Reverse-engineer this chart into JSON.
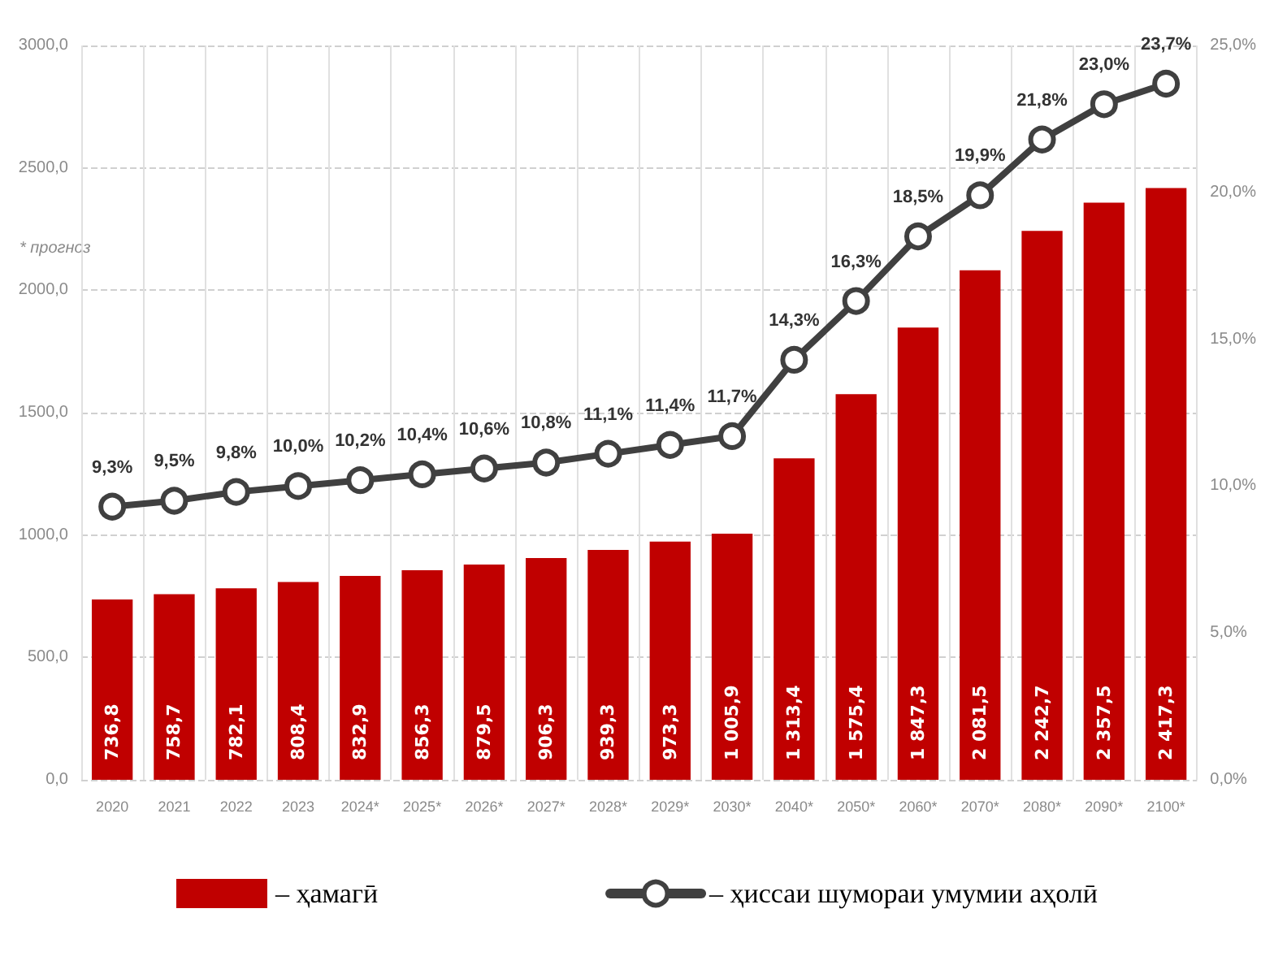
{
  "chart_data": {
    "type": "bar",
    "categories": [
      "2020",
      "2021",
      "2022",
      "2023",
      "2024*",
      "2025*",
      "2026*",
      "2027*",
      "2028*",
      "2029*",
      "2030*",
      "2040*",
      "2050*",
      "2060*",
      "2070*",
      "2080*",
      "2090*",
      "2100*"
    ],
    "series": [
      {
        "name": "– ҳамагӣ",
        "color": "#c00000",
        "values": [
          736.8,
          758.7,
          782.1,
          808.4,
          832.9,
          856.3,
          879.5,
          906.3,
          939.3,
          973.3,
          1005.9,
          1313.4,
          1575.4,
          1847.3,
          2081.5,
          2242.7,
          2357.5,
          2417.3
        ],
        "value_labels": [
          "736,8",
          "758,7",
          "782,1",
          "808,4",
          "832,9",
          "856,3",
          "879,5",
          "906,3",
          "939,3",
          "973,3",
          "1 005,9",
          "1 313,4",
          "1 575,4",
          "1 847,3",
          "2 081,5",
          "2 242,7",
          "2 357,5",
          "2 417,3"
        ]
      },
      {
        "name": "– ҳиссаи шумораи умумии аҳолӣ",
        "type": "line",
        "axis": "y2",
        "color": "#404040",
        "values": [
          9.3,
          9.5,
          9.8,
          10.0,
          10.2,
          10.4,
          10.6,
          10.8,
          11.1,
          11.4,
          11.7,
          14.3,
          16.3,
          18.5,
          19.9,
          21.8,
          23.0,
          23.7
        ],
        "value_labels": [
          "9,3%",
          "9,5%",
          "9,8%",
          "10,0%",
          "10,2%",
          "10,4%",
          "10,6%",
          "10,8%",
          "11,1%",
          "11,4%",
          "11,7%",
          "14,3%",
          "16,3%",
          "18,5%",
          "19,9%",
          "21,8%",
          "23,0%",
          "23,7%"
        ]
      }
    ],
    "ylim": [
      0,
      3000
    ],
    "yticks": [
      {
        "value": 0,
        "label": "0,0"
      },
      {
        "value": 500,
        "label": "500,0"
      },
      {
        "value": 1000,
        "label": "1000,0"
      },
      {
        "value": 1500,
        "label": "1500,0"
      },
      {
        "value": 2000,
        "label": "2000,0"
      },
      {
        "value": 2500,
        "label": "2500,0"
      },
      {
        "value": 3000,
        "label": "3000,0"
      }
    ],
    "y2lim": [
      0,
      25
    ],
    "y2ticks": [
      {
        "value": 0,
        "label": "0,0%"
      },
      {
        "value": 5,
        "label": "5,0%"
      },
      {
        "value": 10,
        "label": "10,0%"
      },
      {
        "value": 15,
        "label": "15,0%"
      },
      {
        "value": 20,
        "label": "20,0%"
      },
      {
        "value": 25,
        "label": "25,0%"
      }
    ],
    "grid": true,
    "legend": "bottom",
    "marker": "circle",
    "line_style": "solid",
    "annotations": [
      "* прогноз"
    ]
  }
}
